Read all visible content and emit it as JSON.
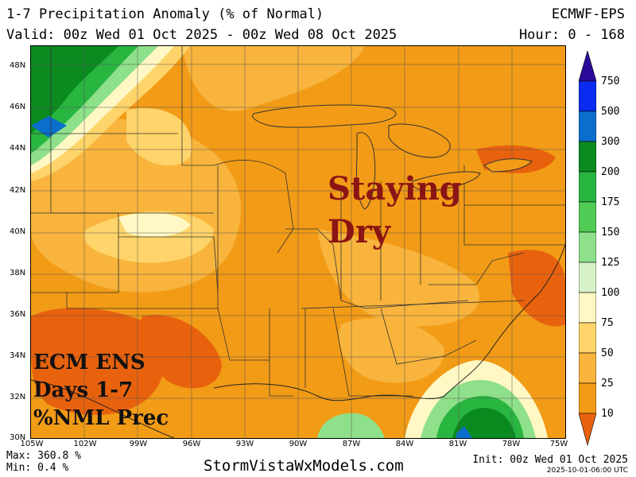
{
  "header": {
    "title": "1-7 Precipitation Anomaly (% of Normal)",
    "valid": "Valid: 00z Wed 01 Oct 2025 - 00z Wed 08 Oct 2025",
    "model": "ECMWF-EPS",
    "hour": "Hour: 0 - 168"
  },
  "axes": {
    "lat_labels": [
      "48N",
      "46N",
      "44N",
      "42N",
      "40N",
      "38N",
      "36N",
      "34N",
      "32N",
      "30N"
    ],
    "lon_labels": [
      "105W",
      "102W",
      "99W",
      "96W",
      "93W",
      "90W",
      "87W",
      "84W",
      "81W",
      "78W",
      "75W"
    ]
  },
  "annotations": {
    "main_line1": "Staying",
    "main_line2": "Dry",
    "main_color": "#8b1414",
    "ens_line1": "ECM ENS",
    "ens_line2": "Days 1-7",
    "ens_line3": "%NML Prec"
  },
  "colorbar": {
    "labels": [
      "750",
      "500",
      "300",
      "200",
      "175",
      "150",
      "125",
      "100",
      "75",
      "50",
      "25",
      "10"
    ],
    "colors": [
      "#2b0a9a",
      "#0a2cf0",
      "#0a6fcc",
      "#0b8a20",
      "#28b540",
      "#50cc55",
      "#8ee08a",
      "#d6f2c6",
      "#fff8c4",
      "#ffd46a",
      "#f8b43c",
      "#f29b16",
      "#e8620e"
    ]
  },
  "footer": {
    "max": "Max: 360.8 %",
    "min": "Min: 0.4 %",
    "site": "StormVistaWxModels.com",
    "init": "Init: 00z Wed 01 Oct 2025",
    "stamp": "2025-10-01-06:00 UTC"
  }
}
